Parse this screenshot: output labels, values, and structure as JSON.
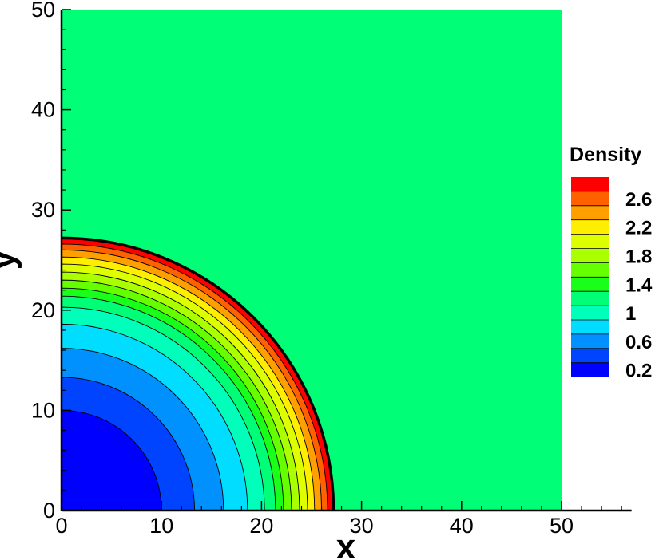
{
  "chart_data": {
    "type": "contour",
    "xlabel": "x",
    "ylabel": "y",
    "xlim": [
      0,
      57
    ],
    "ylim": [
      0,
      50
    ],
    "x_ticks": [
      0,
      10,
      20,
      30,
      40,
      50
    ],
    "y_ticks": [
      0,
      10,
      20,
      30,
      40,
      50
    ],
    "domain": {
      "x": [
        0,
        50
      ],
      "y": [
        0,
        50
      ]
    },
    "ambient_density": 1.2,
    "legend": {
      "title": "Density",
      "labels": [
        "2.6",
        "2.2",
        "1.8",
        "1.4",
        "1",
        "0.6",
        "0.2"
      ],
      "label_values": [
        2.6,
        2.2,
        1.8,
        1.4,
        1.0,
        0.6,
        0.2
      ],
      "levels": [
        0.2,
        0.4,
        0.6,
        0.8,
        1.0,
        1.2,
        1.4,
        1.6,
        1.8,
        2.0,
        2.2,
        2.4,
        2.6,
        2.8
      ],
      "colors": [
        "#0000ff",
        "#0044ff",
        "#0091ff",
        "#00ddff",
        "#00ffbb",
        "#00ff77",
        "#1aff1a",
        "#66ff00",
        "#aaff00",
        "#ddff00",
        "#ffee00",
        "#ffa000",
        "#ff6000",
        "#ff0000"
      ]
    },
    "rings": [
      {
        "radius": 10.0,
        "level": 0.2
      },
      {
        "radius": 13.3,
        "level": 0.4
      },
      {
        "radius": 16.2,
        "level": 0.6
      },
      {
        "radius": 18.6,
        "level": 0.8
      },
      {
        "radius": 20.3,
        "level": 1.0
      },
      {
        "radius": 21.4,
        "level": 1.2
      },
      {
        "radius": 22.2,
        "level": 1.4
      },
      {
        "radius": 23.0,
        "level": 1.6
      },
      {
        "radius": 23.8,
        "level": 1.8
      },
      {
        "radius": 24.6,
        "level": 2.0
      },
      {
        "radius": 25.3,
        "level": 2.2
      },
      {
        "radius": 26.0,
        "level": 2.4
      },
      {
        "radius": 26.6,
        "level": 2.6
      },
      {
        "radius": 27.2,
        "level": 2.8
      }
    ]
  }
}
